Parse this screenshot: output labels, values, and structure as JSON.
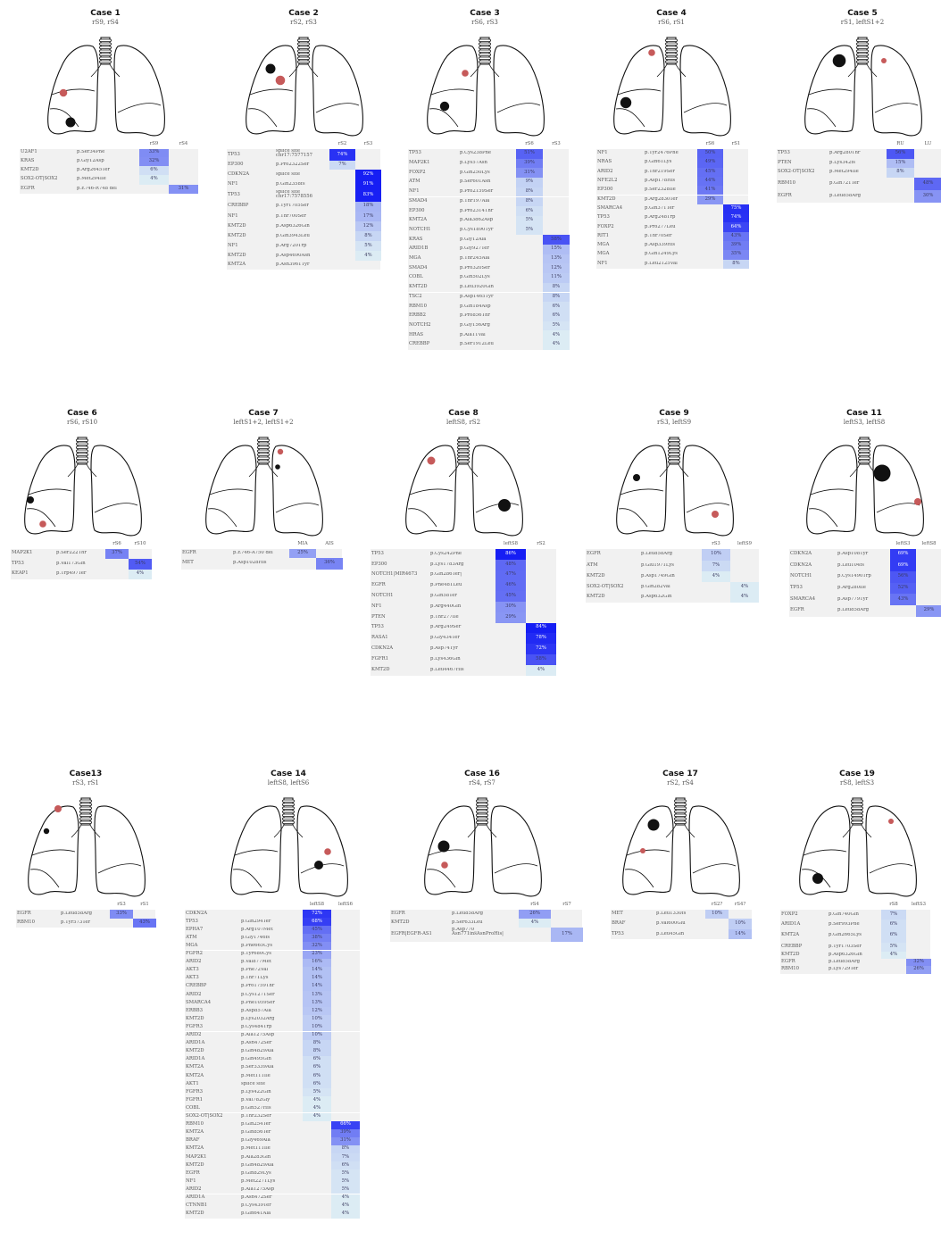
{
  "colors": {
    "row_background": "#f1f1f1",
    "lesion_dominant": "#111111",
    "lesion_secondary": "#c65a5a",
    "heat_low": "#dcecf4",
    "heat_high": "#1a22f4"
  },
  "cases": [
    {
      "title": "Case 1",
      "sites": "rS9, rS4",
      "cols": [
        "rS9",
        "rS4"
      ],
      "lesions": [
        {
          "color": "red"
        },
        {
          "color": "black"
        }
      ],
      "rows": [
        [
          "U2AF1",
          "p.Ser34Phe",
          33,
          null
        ],
        [
          "KRAS",
          "p.Gly12Asp",
          32,
          null
        ],
        [
          "KMT2D",
          "p.Arg2645Ter",
          6,
          null
        ],
        [
          "SOX2-OT|SOX2",
          "p.Met294Ile",
          4,
          null
        ],
        [
          "EGFR",
          "p.E746-R748 del",
          null,
          31
        ]
      ]
    },
    {
      "title": "Case 2",
      "sites": "rS2, rS3",
      "cols": [
        "rS2",
        "rS3"
      ],
      "lesions": [
        {
          "color": "black"
        },
        {
          "color": "red"
        }
      ],
      "rows": [
        [
          "TP53",
          "splice site chr17:7577157",
          74,
          null
        ],
        [
          "EP300",
          "p.Pro2322Ser",
          7,
          null
        ],
        [
          "CDKN2A",
          "splice site",
          null,
          92
        ],
        [
          "NF1",
          "p.Gln2358fs",
          null,
          91
        ],
        [
          "TP53",
          "splice site chr17:7578556",
          null,
          83
        ],
        [
          "CREBBP",
          "p.Tyr1705Ser",
          null,
          18
        ],
        [
          "NF1",
          "p.Thr700Ser",
          null,
          17
        ],
        [
          "KMT2D",
          "p.Asp6326Gln",
          null,
          12
        ],
        [
          "KMT2D",
          "p.Gln3943Leu",
          null,
          8
        ],
        [
          "NF1",
          "p.Arg720Trp",
          null,
          5
        ],
        [
          "KMT2D",
          "p.Asp4690Asn",
          null,
          4
        ],
        [
          "KMT2A",
          "p.Asn3961Tyr",
          null,
          null
        ]
      ]
    },
    {
      "title": "Case 3",
      "sites": "rS6, rS3",
      "cols": [
        "rS6",
        "rS3"
      ],
      "lesions": [
        {
          "color": "red"
        },
        {
          "color": "black"
        }
      ],
      "rows": [
        [
          "TP53",
          "p.Cys238Phe",
          51,
          null
        ],
        [
          "MAP2K1",
          "p.Lys57Asn",
          39,
          null
        ],
        [
          "FOXP2",
          "p.Gln250Lys",
          31,
          null
        ],
        [
          "ATM",
          "p.Ser601Asn",
          9,
          null
        ],
        [
          "NF1",
          "p.Pro2159Ser",
          8,
          null
        ],
        [
          "SMAD4",
          "p.Thr197Ala",
          8,
          null
        ],
        [
          "EP300",
          "p.Pro2314Thr",
          6,
          null
        ],
        [
          "KMT2A",
          "p.Ala3862Asp",
          5,
          null
        ],
        [
          "NOTCH1",
          "p.Cys1890Tyr",
          5,
          null
        ],
        [
          "KRAS",
          "p.Gly12Ala",
          null,
          58
        ],
        [
          "ARID1B",
          "p.Gly927Ter",
          null,
          15
        ],
        [
          "MGA",
          "p.Thr245Ala",
          null,
          13
        ],
        [
          "SMAD4",
          "p.Pro320Ser",
          null,
          12
        ],
        [
          "COBL",
          "p.Gln502Lys",
          null,
          11
        ],
        [
          "KMT2D",
          "p.Leu3920Gln",
          null,
          8
        ],
        [
          "TSC2",
          "p.Asp1465Tyr",
          null,
          8
        ],
        [
          "RBM10",
          "p.Gln184Asp",
          null,
          6
        ],
        [
          "ERBB2",
          "p.Pro856Thr",
          null,
          6
        ],
        [
          "NOTCH2",
          "p.Gly156Arg",
          null,
          5
        ],
        [
          "HRAS",
          "p.Ala11Val",
          null,
          4
        ],
        [
          "CREBBP",
          "p.Ser1912Leu",
          null,
          4
        ]
      ]
    },
    {
      "title": "Case 4",
      "sites": "rS6, rS1",
      "cols": [
        "rS6",
        "rS1"
      ],
      "lesions": [
        {
          "color": "red"
        },
        {
          "color": "black"
        }
      ],
      "rows": [
        [
          "NF1",
          "p.Tyr2476Phe",
          50,
          null
        ],
        [
          "NRAS",
          "p.Gln61Lys",
          49,
          null
        ],
        [
          "ARID2",
          "p.Thr219Ser",
          45,
          null
        ],
        [
          "NFE2L2",
          "p.Asp178His",
          44,
          null
        ],
        [
          "EP300",
          "p.Ser2328Ile",
          41,
          null
        ],
        [
          "KMT2D",
          "p.Arg2830Ter",
          29,
          null
        ],
        [
          "SMARCA4",
          "p.Gln371Ter",
          null,
          75
        ],
        [
          "TP53",
          "p.Arg248Trp",
          null,
          74
        ],
        [
          "FOXP2",
          "p.Pro277Leu",
          null,
          64
        ],
        [
          "RIT1",
          "p.Thr70Ser",
          null,
          43
        ],
        [
          "MGA",
          "p.Asp339His",
          null,
          39
        ],
        [
          "MGA",
          "p.Gln1249Lys",
          null,
          35
        ],
        [
          "NF1",
          "p.Leu2125Val",
          null,
          8
        ]
      ]
    },
    {
      "title": "Case 5",
      "sites": "rS1, leftS1+2",
      "cols": [
        "RU",
        "LU"
      ],
      "lesions": [
        {
          "color": "black"
        },
        {
          "color": "red"
        }
      ],
      "rows": [
        [
          "TP53",
          "p.Arg280Thr",
          56,
          null
        ],
        [
          "PTEN",
          "p.Lys342fs",
          15,
          null
        ],
        [
          "SOX2-OT|SOX2",
          "p.Met294Ile",
          8,
          null
        ],
        [
          "RBM10",
          "p.Gln721Ter",
          null,
          48
        ],
        [
          "EGFR",
          "p.Leu858Arg",
          null,
          30
        ]
      ]
    },
    {
      "title": "Case 6",
      "sites": "rS6, rS10",
      "cols": [
        "rS6",
        "rS10"
      ],
      "lesions": [
        {
          "color": "black"
        },
        {
          "color": "red"
        }
      ],
      "rows": [
        [
          "MAP2K1",
          "p.Ser222Thr",
          37,
          null
        ],
        [
          "TP53",
          "p.Val173Gln",
          null,
          54
        ],
        [
          "KEAP1",
          "p.Trp497Ter",
          null,
          4
        ]
      ]
    },
    {
      "title": "Case 7",
      "sites": "leftS1+2, leftS1+2",
      "cols": [
        "MIA",
        "AIS"
      ],
      "lesions": [
        {
          "color": "red"
        },
        {
          "color": "black"
        }
      ],
      "rows": [
        [
          "EGFR",
          "p.E746-A750 del",
          25,
          null
        ],
        [
          "MET",
          "p.Asp1028His",
          null,
          36
        ]
      ]
    },
    {
      "title": "Case 8",
      "sites": "leftS8, rS2",
      "cols": [
        "leftS8",
        "rS2"
      ],
      "lesions": [
        {
          "color": "red"
        },
        {
          "color": "black"
        }
      ],
      "rows": [
        [
          "TP53",
          "p.Cys242Phe",
          86,
          null
        ],
        [
          "EP300",
          "p.Lys1783Arg",
          48,
          null
        ],
        [
          "NOTCH1|MIR4673",
          "p.Gln286Ter|",
          47,
          null
        ],
        [
          "EGFR",
          "p.Phe481Leu",
          46,
          null
        ],
        [
          "NOTCH1",
          "p.Gln58Ter",
          45,
          null
        ],
        [
          "NF1",
          "p.Arg440Gln",
          30,
          null
        ],
        [
          "PTEN",
          "p.Thr277Ile",
          29,
          null
        ],
        [
          "TP53",
          "p.Arg249Ser",
          null,
          84
        ],
        [
          "RASA1",
          "p.Gly434Ter",
          null,
          78
        ],
        [
          "CDKN2A",
          "p.Asp74Tyr",
          null,
          72
        ],
        [
          "FGFR1",
          "p.Lys436Gln",
          null,
          58
        ],
        [
          "KMT2D",
          "p.Leu4467His",
          null,
          4
        ]
      ]
    },
    {
      "title": "Case 9",
      "sites": "rS3, leftS9",
      "cols": [
        "rS3",
        "leftS9"
      ],
      "lesions": [
        {
          "color": "black"
        },
        {
          "color": "red"
        }
      ],
      "rows": [
        [
          "EGFR",
          "p.Leu858Arg",
          10,
          null
        ],
        [
          "ATM",
          "p.Glu1971Lys",
          7,
          null
        ],
        [
          "KMT2D",
          "p.Asp1749Gln",
          4,
          null
        ],
        [
          "SOX2-OT|SOX2",
          "p.Gln282Val",
          null,
          4
        ],
        [
          "KMT2D",
          "p.Asp632Gln",
          null,
          4
        ]
      ]
    },
    {
      "title": "Case 11",
      "sites": "leftS3, leftS8",
      "cols": [
        "leftS3",
        "leftS8"
      ],
      "lesions": [
        {
          "color": "black"
        },
        {
          "color": "red"
        }
      ],
      "rows": [
        [
          "CDKN2A",
          "p.Asp108Tyr",
          69,
          null
        ],
        [
          "CDKN2A",
          "p.Leu104fs",
          69,
          null
        ],
        [
          "NOTCH1",
          "p.Cys1490Trp",
          56,
          null
        ],
        [
          "TP53",
          "p.Arg280Ile",
          52,
          null
        ],
        [
          "SMARCA4",
          "p.Asp779Tyr",
          43,
          null
        ],
        [
          "EGFR",
          "p.Leu858Arg",
          null,
          29
        ]
      ]
    },
    {
      "title": "Case13",
      "sites": "rS3, rS1",
      "cols": [
        "rS3",
        "rS1"
      ],
      "lesions": [
        {
          "color": "red"
        },
        {
          "color": "black"
        }
      ],
      "rows": [
        [
          "EGFR",
          "p.Leu858Arg",
          33,
          null
        ],
        [
          "RBM10",
          "p.Tyr573Ter",
          null,
          43
        ]
      ]
    },
    {
      "title": "Case 14",
      "sites": "leftS8, leftS6",
      "cols": [
        "leftS8",
        "leftS6"
      ],
      "lesions": [
        {
          "color": "red"
        },
        {
          "color": "black"
        }
      ],
      "rows": [
        [
          "CDKN2A",
          "",
          72,
          null
        ],
        [
          "TP53",
          "p.Gln294Ter",
          68,
          null
        ],
        [
          "EPHA7",
          "p.Arg107Met",
          45,
          null
        ],
        [
          "ATM",
          "p.Gly1746fs",
          38,
          null
        ],
        [
          "MGA",
          "p.Phe665Cys",
          32,
          null
        ],
        [
          "FGFR2",
          "p.Tyr680Cys",
          23,
          null
        ],
        [
          "ARID2",
          "p.Val877Met",
          16,
          null
        ],
        [
          "AKT3",
          "p.Phe72Val",
          14,
          null
        ],
        [
          "AKT3",
          "p.Thr71Lys",
          14,
          null
        ],
        [
          "CREBBP",
          "p.Pro1759Thr",
          14,
          null
        ],
        [
          "ARID2",
          "p.Cys1271Ser",
          13,
          null
        ],
        [
          "SMARCA4",
          "p.Phe1059Ser",
          13,
          null
        ],
        [
          "ERBB3",
          "p.Asp857Ala",
          12,
          null
        ],
        [
          "KMT2D",
          "p.Lys2032Arg",
          10,
          null
        ],
        [
          "FGFR3",
          "p.Cys484Trp",
          10,
          null
        ],
        [
          "ARID2",
          "p.Ala1275Asp",
          10,
          null
        ],
        [
          "ARID1A",
          "p.Asn472Ser",
          8,
          null
        ],
        [
          "KMT2D",
          "p.Gln4829Ala",
          8,
          null
        ],
        [
          "ARID1A",
          "p.Gln495Gln",
          6,
          null
        ],
        [
          "KMT2A",
          "p.Ser3339Ala",
          6,
          null
        ],
        [
          "KMT2A",
          "p.Met111Ile",
          6,
          null
        ],
        [
          "AKT1",
          "splice site",
          6,
          null
        ],
        [
          "FGFR3",
          "p.Lys422Gln",
          5,
          null
        ],
        [
          "FGFR1",
          "p.Val782Gly",
          4,
          null
        ],
        [
          "COBL",
          "p.Gln527His",
          4,
          null
        ],
        [
          "SOX2-OT|SOX2",
          "p.Thr232Ser",
          4,
          null
        ],
        [
          "RBM10",
          "p.Gln254Ter",
          null,
          66
        ],
        [
          "KMT2A",
          "p.Gln856Ter",
          null,
          39
        ],
        [
          "BRAF",
          "p.Gly469Ala",
          null,
          31
        ],
        [
          "KMT2A",
          "p.Met111Ile",
          null,
          8
        ],
        [
          "MAP2K1",
          "p.Ala283Gln",
          null,
          7
        ],
        [
          "KMT2D",
          "p.Gln4829Ala",
          null,
          6
        ],
        [
          "EGFR",
          "p.Gln829Lys",
          null,
          5
        ],
        [
          "NF1",
          "p.Met2271Lys",
          null,
          5
        ],
        [
          "ARID2",
          "p.Ala1275Asp",
          null,
          5
        ],
        [
          "ARID1A",
          "p.Asn472Ser",
          null,
          4
        ],
        [
          "CTNNB1",
          "p.Cys439Ter",
          null,
          4
        ],
        [
          "KMT2D",
          "p.Gln641Ala",
          null,
          4
        ]
      ]
    },
    {
      "title": "Case 16",
      "sites": "rS4, rS7",
      "cols": [
        "rS4",
        "rS7"
      ],
      "lesions": [
        {
          "color": "black"
        },
        {
          "color": "red"
        }
      ],
      "rows": [
        [
          "EGFR",
          "p.Leu858Arg",
          26,
          null
        ],
        [
          "KMT2D",
          "p.Ser633Leu",
          4,
          null
        ],
        [
          "EGFR|EGFR-AS1",
          "p.Asp770_ Asn771insAsnProHis|",
          null,
          17
        ]
      ]
    },
    {
      "title": "Case 17",
      "sites": "rS2, rS4",
      "cols": [
        "rS2?",
        "rS4?"
      ],
      "lesions": [
        {
          "color": "black"
        },
        {
          "color": "red"
        }
      ],
      "rows": [
        [
          "MET",
          "p.Leu1330fs",
          10,
          null
        ],
        [
          "BRAF",
          "p.Val600Glu",
          null,
          10
        ],
        [
          "TP53",
          "p.Leu45Gln",
          null,
          14
        ]
      ]
    },
    {
      "title": "Case 19",
      "sites": "rS8, leftS3",
      "cols": [
        "rS8",
        "leftS3"
      ],
      "lesions": [
        {
          "color": "black"
        },
        {
          "color": "red"
        }
      ],
      "rows": [
        [
          "FOXP2",
          "p.Gln740Gln",
          7,
          null
        ],
        [
          "ARID1A",
          "p.Ser993Phe",
          6,
          null
        ],
        [
          "KMT2A",
          "p.Gln2665Lys",
          6,
          null
        ],
        [
          "CREBBP",
          "p.Tyr1703Ser",
          5,
          null
        ],
        [
          "KMT2D",
          "p.Asp6326Gln",
          4,
          null
        ],
        [
          "EGFR",
          "p.Leu858Arg",
          null,
          32
        ],
        [
          "RBM10",
          "p.Lys729Ter",
          null,
          26
        ]
      ]
    }
  ]
}
